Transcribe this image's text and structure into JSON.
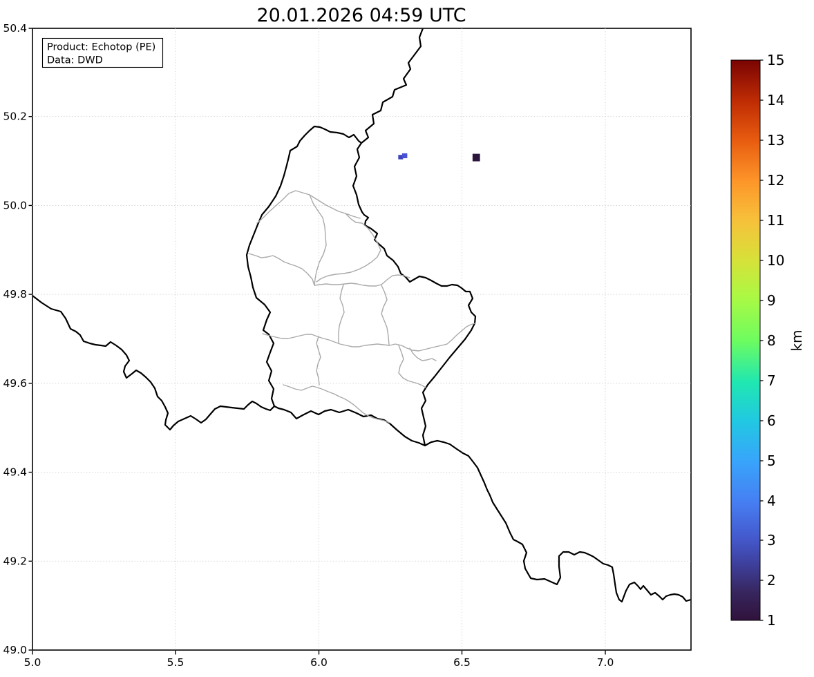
{
  "title": "20.01.2026 04:59 UTC",
  "info_box": {
    "line1": "Product: Echotop (PE)",
    "line2": "Data: DWD"
  },
  "axes": {
    "x_ticks": [
      "5.0",
      "5.5",
      "6.0",
      "6.5",
      "7.0"
    ],
    "y_ticks": [
      "50.4",
      "50.2",
      "50.0",
      "49.8",
      "49.6",
      "49.4",
      "49.2",
      "49.0"
    ]
  },
  "colorbar": {
    "label": "km",
    "ticks": [
      "15",
      "14",
      "13",
      "12",
      "11",
      "10",
      "9",
      "8",
      "7",
      "6",
      "5",
      "4",
      "3",
      "2",
      "1"
    ],
    "colormap": "turbo",
    "min_color": "#30123b",
    "max_color": "#7a0403"
  },
  "chart_data": {
    "type": "heatmap",
    "title": "20.01.2026 04:59 UTC",
    "product": "Echotop (PE)",
    "source": "DWD",
    "x_range": [
      5.0,
      7.3
    ],
    "y_range": [
      49.0,
      50.4
    ],
    "x_ticks": [
      5.0,
      5.5,
      6.0,
      6.5,
      7.0
    ],
    "y_ticks": [
      49.0,
      49.2,
      49.4,
      49.6,
      49.8,
      50.0,
      50.2,
      50.4
    ],
    "grid": true,
    "colorbar": {
      "label": "km",
      "range": [
        1,
        15
      ],
      "colormap": "turbo"
    },
    "points": [
      {
        "lon": 6.286,
        "lat": 50.11,
        "value_km": 3,
        "color": "#3f44ba",
        "extent_deg": [
          0.017,
          0.01
        ]
      },
      {
        "lon": 6.3,
        "lat": 50.113,
        "value_km": 3,
        "color": "#4a52d4",
        "extent_deg": [
          0.018,
          0.011
        ]
      },
      {
        "lon": 6.55,
        "lat": 50.109,
        "value_km": 1,
        "color": "#2c163d",
        "extent_deg": [
          0.026,
          0.017
        ]
      }
    ]
  }
}
